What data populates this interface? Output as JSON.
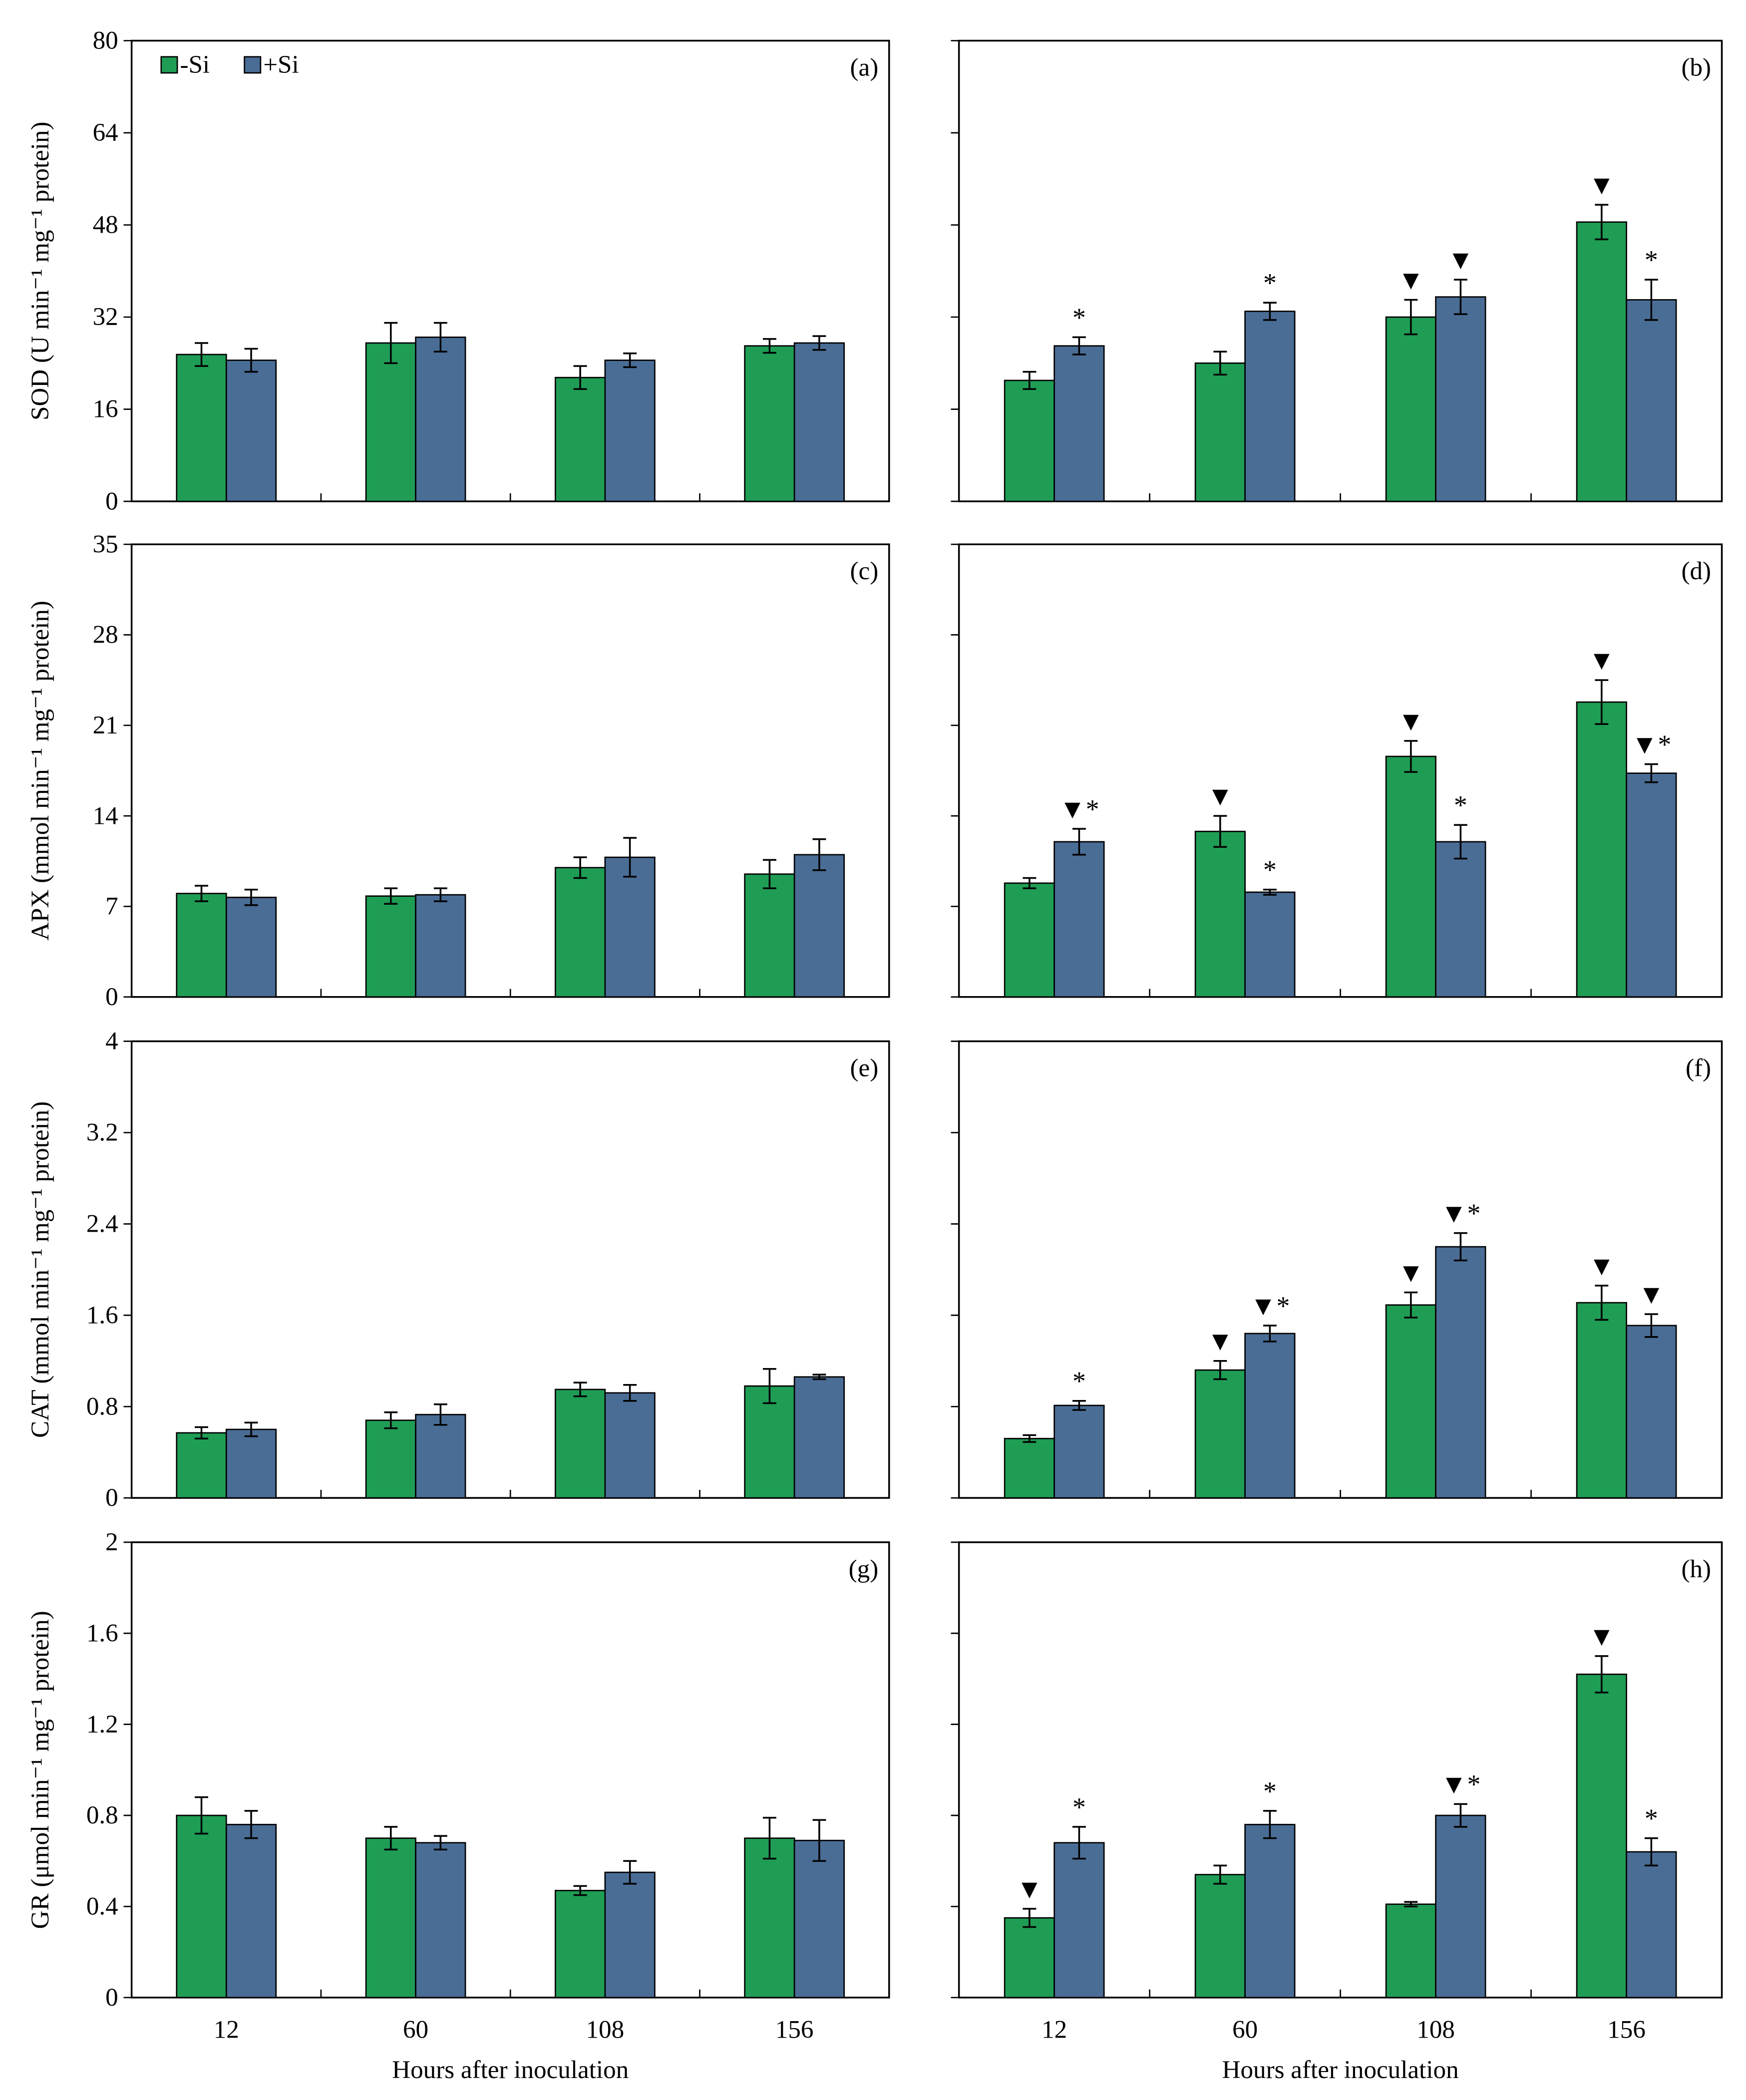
{
  "chart_data": [
    {
      "type": "bar",
      "panel": "(a)",
      "ylabel": "SOD (U min⁻¹ mg⁻¹ protein)",
      "categories": [
        "12",
        "60",
        "108",
        "156"
      ],
      "xtick_labels": false,
      "ytick_labels": true,
      "legend": "upper left",
      "ylim": [
        0,
        80
      ],
      "yticks": [
        0,
        16,
        32,
        48,
        64,
        80
      ],
      "series": [
        {
          "name": "-Si",
          "color": "#1f9d55",
          "values": [
            25.5,
            27.5,
            21.5,
            27
          ],
          "errors": [
            2,
            3.5,
            2,
            1.2
          ]
        },
        {
          "name": "+Si",
          "color": "#4a6d96",
          "values": [
            24.5,
            28.5,
            24.5,
            27.5
          ],
          "errors": [
            2,
            2.5,
            1.2,
            1.2
          ]
        }
      ]
    },
    {
      "type": "bar",
      "panel": "(b)",
      "categories": [
        "12",
        "60",
        "108",
        "156"
      ],
      "xtick_labels": false,
      "ytick_labels": false,
      "ylim": [
        0,
        80
      ],
      "yticks": [
        0,
        16,
        32,
        48,
        64,
        80
      ],
      "series": [
        {
          "name": "-Si",
          "color": "#1f9d55",
          "values": [
            21,
            24,
            32,
            48.5
          ],
          "errors": [
            1.5,
            2,
            3,
            3
          ],
          "markers": [
            null,
            null,
            "▼",
            "▼"
          ]
        },
        {
          "name": "+Si",
          "color": "#4a6d96",
          "values": [
            27,
            33,
            35.5,
            35
          ],
          "errors": [
            1.5,
            1.5,
            3,
            3.5
          ],
          "markers": [
            "*",
            "*",
            "▼",
            "*"
          ]
        }
      ]
    },
    {
      "type": "bar",
      "panel": "(c)",
      "ylabel": "APX (mmol min⁻¹ mg⁻¹ protein)",
      "categories": [
        "12",
        "60",
        "108",
        "156"
      ],
      "xtick_labels": false,
      "ytick_labels": true,
      "ylim": [
        0,
        35
      ],
      "yticks": [
        0,
        7,
        14,
        21,
        28,
        35
      ],
      "series": [
        {
          "name": "-Si",
          "color": "#1f9d55",
          "values": [
            8,
            7.8,
            10,
            9.5
          ],
          "errors": [
            0.6,
            0.6,
            0.8,
            1.1
          ]
        },
        {
          "name": "+Si",
          "color": "#4a6d96",
          "values": [
            7.7,
            7.9,
            10.8,
            11
          ],
          "errors": [
            0.6,
            0.5,
            1.5,
            1.2
          ]
        }
      ]
    },
    {
      "type": "bar",
      "panel": "(d)",
      "categories": [
        "12",
        "60",
        "108",
        "156"
      ],
      "xtick_labels": false,
      "ytick_labels": false,
      "ylim": [
        0,
        35
      ],
      "yticks": [
        0,
        7,
        14,
        21,
        28,
        35
      ],
      "series": [
        {
          "name": "-Si",
          "color": "#1f9d55",
          "values": [
            8.8,
            12.8,
            18.6,
            22.8
          ],
          "errors": [
            0.4,
            1.2,
            1.2,
            1.7
          ],
          "markers": [
            null,
            "▼",
            "▼",
            "▼"
          ]
        },
        {
          "name": "+Si",
          "color": "#4a6d96",
          "values": [
            12,
            8.1,
            12,
            17.3
          ],
          "errors": [
            1,
            0.2,
            1.3,
            0.7
          ],
          "markers": [
            "▼*",
            "*",
            "*",
            "▼*"
          ]
        }
      ]
    },
    {
      "type": "bar",
      "panel": "(e)",
      "ylabel": "CAT (mmol min⁻¹ mg⁻¹ protein)",
      "categories": [
        "12",
        "60",
        "108",
        "156"
      ],
      "xtick_labels": false,
      "ytick_labels": true,
      "ylim": [
        0,
        4
      ],
      "yticks": [
        0,
        0.8,
        1.6,
        2.4,
        3.2,
        4
      ],
      "series": [
        {
          "name": "-Si",
          "color": "#1f9d55",
          "values": [
            0.57,
            0.68,
            0.95,
            0.98
          ],
          "errors": [
            0.05,
            0.07,
            0.06,
            0.15
          ]
        },
        {
          "name": "+Si",
          "color": "#4a6d96",
          "values": [
            0.6,
            0.73,
            0.92,
            1.06
          ],
          "errors": [
            0.06,
            0.09,
            0.07,
            0.02
          ]
        }
      ]
    },
    {
      "type": "bar",
      "panel": "(f)",
      "categories": [
        "12",
        "60",
        "108",
        "156"
      ],
      "xtick_labels": false,
      "ytick_labels": false,
      "ylim": [
        0,
        4
      ],
      "yticks": [
        0,
        0.8,
        1.6,
        2.4,
        3.2,
        4
      ],
      "series": [
        {
          "name": "-Si",
          "color": "#1f9d55",
          "values": [
            0.52,
            1.12,
            1.69,
            1.71
          ],
          "errors": [
            0.03,
            0.08,
            0.11,
            0.15
          ],
          "markers": [
            null,
            "▼",
            "▼",
            "▼"
          ]
        },
        {
          "name": "+Si",
          "color": "#4a6d96",
          "values": [
            0.81,
            1.44,
            2.2,
            1.51
          ],
          "errors": [
            0.04,
            0.07,
            0.12,
            0.1
          ],
          "markers": [
            "*",
            "▼*",
            "▼*",
            "▼"
          ]
        }
      ]
    },
    {
      "type": "bar",
      "panel": "(g)",
      "ylabel": "GR (μmol min⁻¹ mg⁻¹ protein)",
      "xlabel": "Hours after inoculation",
      "categories": [
        "12",
        "60",
        "108",
        "156"
      ],
      "xtick_labels": true,
      "ytick_labels": true,
      "ylim": [
        0,
        2
      ],
      "yticks": [
        0,
        0.4,
        0.8,
        1.2,
        1.6,
        2
      ],
      "series": [
        {
          "name": "-Si",
          "color": "#1f9d55",
          "values": [
            0.8,
            0.7,
            0.47,
            0.7
          ],
          "errors": [
            0.08,
            0.05,
            0.02,
            0.09
          ]
        },
        {
          "name": "+Si",
          "color": "#4a6d96",
          "values": [
            0.76,
            0.68,
            0.55,
            0.69
          ],
          "errors": [
            0.06,
            0.03,
            0.05,
            0.09
          ]
        }
      ]
    },
    {
      "type": "bar",
      "panel": "(h)",
      "xlabel": "Hours after inoculation",
      "categories": [
        "12",
        "60",
        "108",
        "156"
      ],
      "xtick_labels": true,
      "ytick_labels": false,
      "ylim": [
        0,
        2
      ],
      "yticks": [
        0,
        0.4,
        0.8,
        1.2,
        1.6,
        2
      ],
      "series": [
        {
          "name": "-Si",
          "color": "#1f9d55",
          "values": [
            0.35,
            0.54,
            0.41,
            1.42
          ],
          "errors": [
            0.04,
            0.04,
            0.01,
            0.08
          ],
          "markers": [
            "▼",
            null,
            null,
            "▼"
          ]
        },
        {
          "name": "+Si",
          "color": "#4a6d96",
          "values": [
            0.68,
            0.76,
            0.8,
            0.64
          ],
          "errors": [
            0.07,
            0.06,
            0.05,
            0.06
          ],
          "markers": [
            "*",
            "*",
            "▼*",
            "*"
          ]
        }
      ]
    }
  ]
}
